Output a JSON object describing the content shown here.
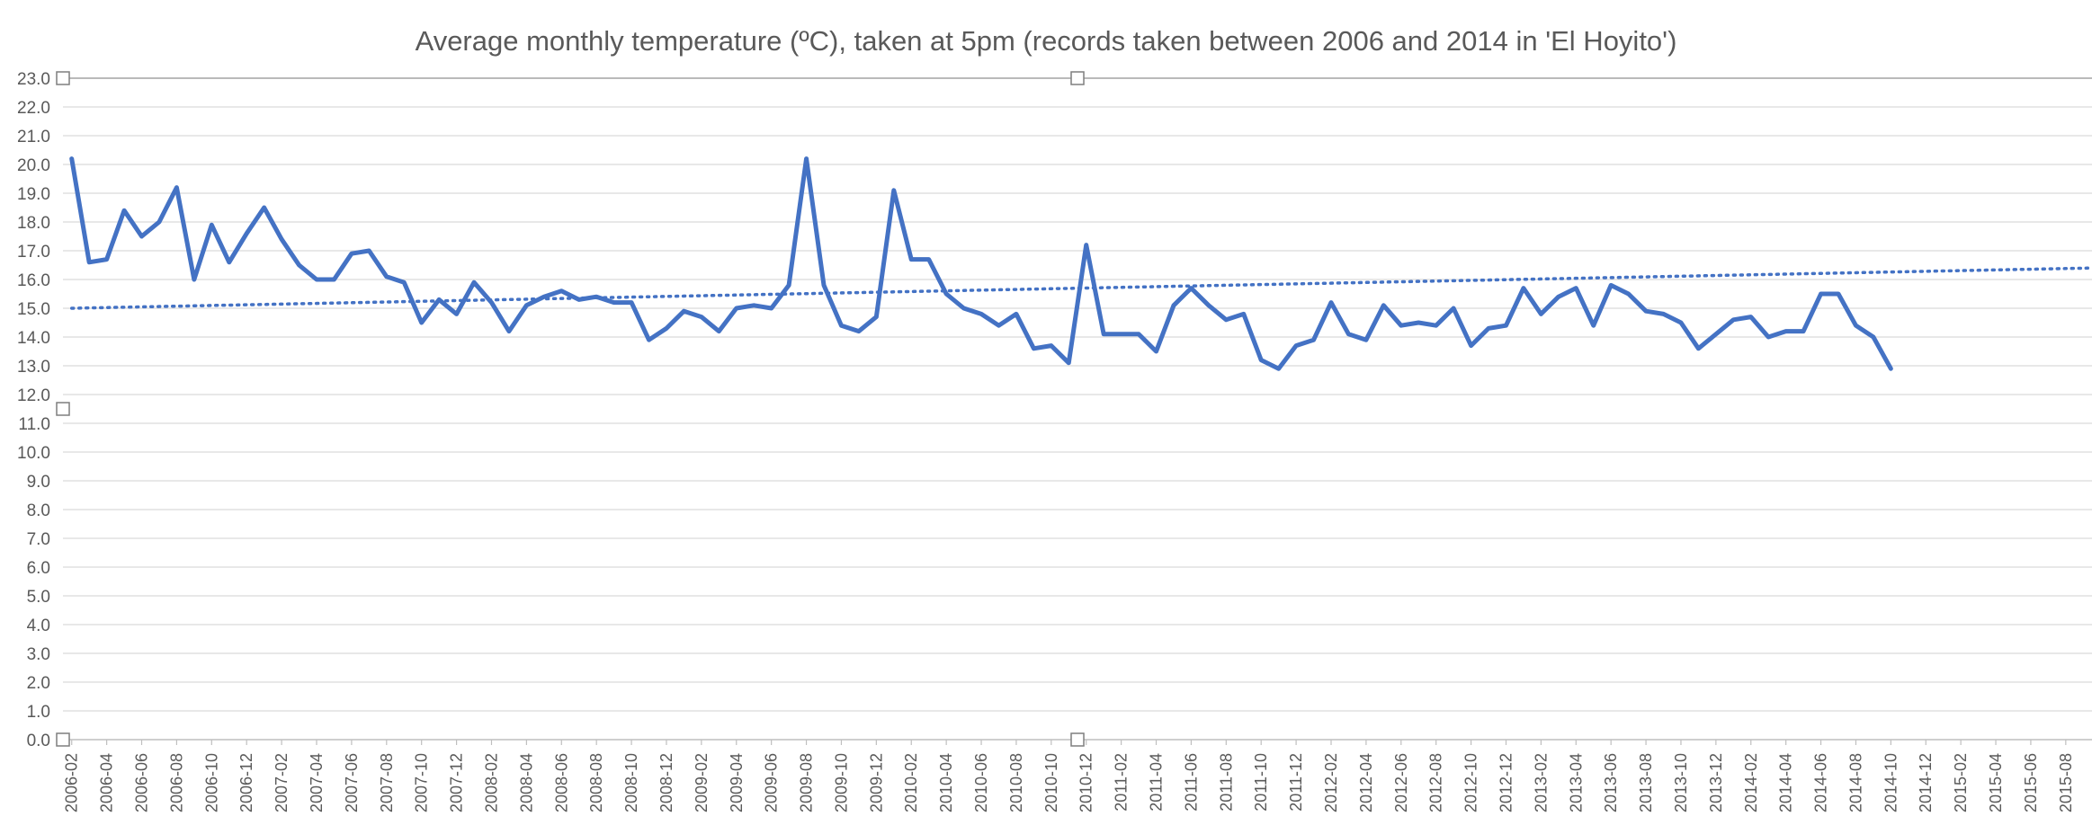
{
  "chart_data": {
    "type": "line",
    "title": "Average monthly temperature (ºC), taken at 5pm (records taken between 2006 and 2014 in 'El Hoyito')",
    "xlabel": "",
    "ylabel": "",
    "ylim": [
      0,
      23
    ],
    "yticks": [
      "0.0",
      "1.0",
      "2.0",
      "3.0",
      "4.0",
      "5.0",
      "6.0",
      "7.0",
      "8.0",
      "9.0",
      "10.0",
      "11.0",
      "12.0",
      "13.0",
      "14.0",
      "15.0",
      "16.0",
      "17.0",
      "18.0",
      "19.0",
      "20.0",
      "21.0",
      "22.0",
      "23.0"
    ],
    "x_start": "2006-02",
    "x_end": "2015-09",
    "x_tick_labels": [
      "2006-02",
      "2006-04",
      "2006-06",
      "2006-08",
      "2006-10",
      "2006-12",
      "2007-02",
      "2007-04",
      "2007-06",
      "2007-08",
      "2007-10",
      "2007-12",
      "2008-02",
      "2008-04",
      "2008-06",
      "2008-08",
      "2008-10",
      "2008-12",
      "2009-02",
      "2009-04",
      "2009-06",
      "2009-08",
      "2009-10",
      "2009-12",
      "2010-02",
      "2010-04",
      "2010-06",
      "2010-08",
      "2010-10",
      "2010-12",
      "2011-02",
      "2011-04",
      "2011-06",
      "2011-08",
      "2011-10",
      "2011-12",
      "2012-02",
      "2012-04",
      "2012-06",
      "2012-08",
      "2012-10",
      "2012-12",
      "2013-02",
      "2013-04",
      "2013-06",
      "2013-08",
      "2013-10",
      "2013-12",
      "2014-02",
      "2014-04",
      "2014-06",
      "2014-08",
      "2014-10",
      "2014-12",
      "2015-02",
      "2015-04",
      "2015-06",
      "2015-08"
    ],
    "grid": true,
    "legend": "none",
    "series": [
      {
        "color": "#4472c4",
        "values": [
          20.2,
          16.6,
          16.7,
          18.4,
          17.5,
          18.0,
          19.2,
          16.0,
          17.9,
          16.6,
          17.6,
          18.5,
          17.4,
          16.5,
          16.0,
          16.0,
          16.9,
          17.0,
          16.1,
          15.9,
          14.5,
          15.3,
          14.8,
          15.9,
          15.2,
          14.2,
          15.1,
          15.4,
          15.6,
          15.3,
          15.4,
          15.2,
          15.2,
          13.9,
          14.3,
          14.9,
          14.7,
          14.2,
          15.0,
          15.1,
          15.0,
          15.8,
          20.2,
          15.8,
          14.4,
          14.2,
          14.7,
          19.1,
          16.7,
          16.7,
          15.5,
          15.0,
          14.8,
          14.4,
          14.8,
          13.6,
          13.7,
          13.1,
          17.2,
          14.1,
          14.1,
          14.1,
          13.5,
          15.1,
          15.7,
          15.1,
          14.6,
          14.8,
          13.2,
          12.9,
          13.7,
          13.9,
          15.2,
          14.1,
          13.9,
          15.1,
          14.4,
          14.5,
          14.4,
          15.0,
          13.7,
          14.3,
          14.4,
          15.7,
          14.8,
          15.4,
          15.7,
          14.4,
          15.8,
          15.5,
          14.9,
          14.8,
          14.5,
          13.6,
          14.1,
          14.6,
          14.7,
          14.0,
          14.2,
          14.2,
          15.5,
          15.5,
          14.4,
          14.0,
          12.9
        ]
      }
    ],
    "trendline": {
      "style": "dotted",
      "color": "#4472c4",
      "start_value": 15.0,
      "end_value": 16.4
    }
  }
}
